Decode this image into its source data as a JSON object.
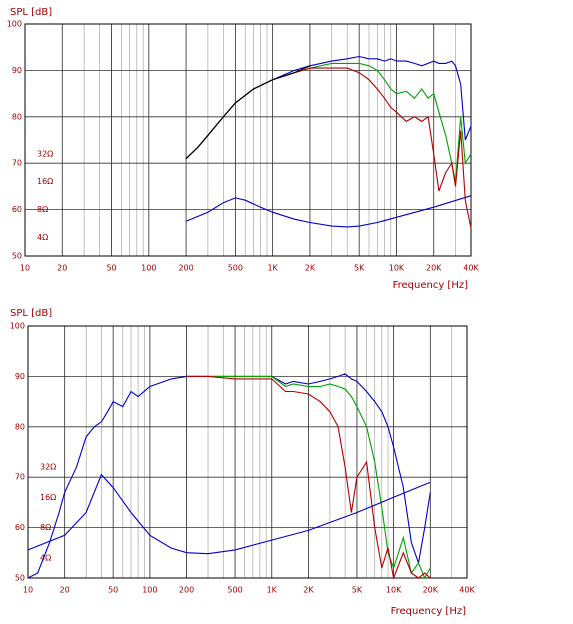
{
  "chart_data": [
    {
      "type": "line",
      "ylabel": "SPL [dB]",
      "xlabel": "Frequency [Hz]",
      "xscale": "log",
      "xlim": [
        10,
        40000
      ],
      "ylim": [
        50,
        100
      ],
      "xticks": [
        10,
        20,
        50,
        100,
        200,
        500,
        {
          "value": 1000,
          "label": "1K"
        },
        {
          "value": 2000,
          "label": "2K"
        },
        {
          "value": 5000,
          "label": "5K"
        },
        {
          "value": 10000,
          "label": "10K"
        },
        {
          "value": 20000,
          "label": "20K"
        },
        {
          "value": 40000,
          "label": "40K"
        }
      ],
      "yticks": [
        50,
        60,
        70,
        80,
        90,
        100
      ],
      "y2scale": "log",
      "y2lim": [
        2.52,
        812
      ],
      "y2ticks": [
        {
          "value": 4,
          "label": "4Ω"
        },
        {
          "value": 8,
          "label": "8Ω"
        },
        {
          "value": 16,
          "label": "16Ω"
        },
        {
          "value": 32,
          "label": "32Ω"
        }
      ],
      "grid": true,
      "minor_grid": true,
      "series": [
        {
          "color": "#0000cc",
          "x": [
            200,
            250,
            300,
            400,
            500,
            700,
            1000,
            1500,
            2000,
            3000,
            4000,
            5000,
            6000,
            7000,
            8000,
            9000,
            10000,
            12000,
            14000,
            16000,
            18000,
            20000,
            22000,
            25000,
            28000,
            30000,
            33000,
            36000,
            40000
          ],
          "values": [
            71,
            73.5,
            76,
            80,
            83,
            86,
            88,
            90,
            91,
            92,
            92.5,
            93,
            92.5,
            92.5,
            92,
            92.5,
            92,
            92,
            91.5,
            91,
            91.5,
            92,
            91.5,
            91.5,
            92,
            91,
            87,
            75,
            78
          ]
        },
        {
          "color": "#00a000",
          "x": [
            200,
            250,
            300,
            400,
            500,
            700,
            1000,
            1500,
            2000,
            3000,
            4000,
            5000,
            6000,
            7000,
            8000,
            9000,
            10000,
            12000,
            14000,
            16000,
            18000,
            20000,
            22000,
            25000,
            28000,
            30000,
            33000,
            36000,
            40000
          ],
          "values": [
            71,
            73.5,
            76,
            80,
            83,
            86,
            88,
            89.5,
            90.5,
            91.5,
            91.5,
            91.5,
            91,
            90,
            88,
            86,
            85,
            85.5,
            84,
            86,
            84,
            85,
            81,
            76,
            70,
            66,
            80,
            70,
            72
          ]
        },
        {
          "color": "#b00000",
          "x": [
            200,
            250,
            300,
            400,
            500,
            700,
            1000,
            1500,
            2000,
            3000,
            4000,
            5000,
            6000,
            7000,
            8000,
            9000,
            10000,
            12000,
            14000,
            16000,
            18000,
            20000,
            22000,
            25000,
            28000,
            30000,
            33000,
            36000,
            40000
          ],
          "values": [
            71,
            73.5,
            76,
            80,
            83,
            86,
            88,
            89.5,
            90.5,
            90.5,
            90.5,
            89.5,
            88,
            86,
            84,
            82,
            81,
            79,
            80,
            79,
            80,
            72,
            64,
            68,
            70,
            65,
            77,
            62,
            56
          ]
        },
        {
          "color": "#000000",
          "x": [
            200,
            250,
            300,
            400,
            500,
            700,
            1000,
            1500,
            2000
          ],
          "values": [
            71,
            73.5,
            76,
            80,
            83,
            86,
            88,
            89.5,
            91
          ]
        },
        {
          "color": "#0000cc",
          "axis": "y2",
          "x": [
            200,
            300,
            400,
            500,
            600,
            800,
            1000,
            1500,
            2000,
            3000,
            4000,
            5000,
            7000,
            10000,
            20000,
            40000
          ],
          "values": [
            6.0,
            7.5,
            9.5,
            10.7,
            10.1,
            8.5,
            7.5,
            6.3,
            5.8,
            5.3,
            5.2,
            5.3,
            5.8,
            6.6,
            8.5,
            11.3
          ]
        }
      ]
    },
    {
      "type": "line",
      "ylabel": "SPL [dB]",
      "xlabel": "Frequency [Hz]",
      "xscale": "log",
      "xlim": [
        10,
        40000
      ],
      "ylim": [
        50,
        100
      ],
      "xticks": [
        10,
        20,
        50,
        100,
        200,
        500,
        {
          "value": 1000,
          "label": "1K"
        },
        {
          "value": 2000,
          "label": "2K"
        },
        {
          "value": 5000,
          "label": "5K"
        },
        {
          "value": 10000,
          "label": "10K"
        },
        {
          "value": 20000,
          "label": "20K"
        },
        {
          "value": 40000,
          "label": "40K"
        }
      ],
      "yticks": [
        50,
        60,
        70,
        80,
        90,
        100
      ],
      "y2scale": "log",
      "y2lim": [
        2.52,
        812
      ],
      "y2ticks": [
        {
          "value": 4,
          "label": "4Ω"
        },
        {
          "value": 8,
          "label": "8Ω"
        },
        {
          "value": 16,
          "label": "16Ω"
        },
        {
          "value": 32,
          "label": "32Ω"
        }
      ],
      "grid": true,
      "minor_grid": true,
      "series": [
        {
          "color": "#0000cc",
          "x": [
            10,
            12,
            15,
            18,
            20,
            25,
            30,
            35,
            40,
            45,
            50,
            60,
            70,
            80,
            100,
            150,
            200,
            300,
            500,
            700,
            1000,
            1300,
            1500,
            2000,
            2500,
            3000,
            3500,
            4000,
            4500,
            5000,
            6000,
            7000,
            8000,
            9000,
            10000,
            12000,
            14000,
            16000,
            18000,
            20000
          ],
          "values": [
            50,
            51,
            57,
            63,
            67,
            72,
            78,
            80,
            81,
            83,
            85,
            84,
            87,
            86,
            88,
            89.5,
            90,
            90,
            90,
            90,
            90,
            88.5,
            89,
            88.5,
            89,
            89.5,
            90,
            90.5,
            89.5,
            89,
            87,
            85,
            83,
            80,
            76,
            68,
            57,
            53,
            60,
            67
          ]
        },
        {
          "color": "#00a000",
          "x": [
            200,
            300,
            500,
            700,
            1000,
            1300,
            1500,
            2000,
            2500,
            3000,
            3500,
            4000,
            4500,
            5000,
            6000,
            7000,
            8000,
            9000,
            10000,
            12000,
            14000,
            16000,
            18000,
            20000
          ],
          "values": [
            90,
            90,
            90,
            90,
            90,
            88,
            88.5,
            88,
            88,
            88.5,
            88,
            87.5,
            86,
            84,
            80,
            73,
            64,
            55,
            52,
            58,
            51,
            53,
            50,
            52
          ]
        },
        {
          "color": "#b00000",
          "x": [
            200,
            300,
            500,
            700,
            1000,
            1300,
            1500,
            2000,
            2500,
            3000,
            3500,
            4000,
            4500,
            5000,
            6000,
            7000,
            8000,
            9000,
            10000,
            12000,
            14000,
            16000,
            18000,
            20000
          ],
          "values": [
            90,
            90,
            89.5,
            89.5,
            89.5,
            87,
            87,
            86.5,
            85,
            83,
            80,
            72,
            63,
            70,
            73,
            60,
            52,
            56,
            50,
            55,
            51,
            50,
            51,
            50
          ]
        },
        {
          "color": "#0000cc",
          "axis": "y2",
          "x": [
            10,
            20,
            30,
            40,
            50,
            70,
            100,
            150,
            200,
            300,
            500,
            1000,
            2000,
            5000,
            10000,
            20000
          ],
          "values": [
            4.8,
            6.7,
            11.3,
            26.9,
            20,
            11.3,
            6.7,
            5.0,
            4.5,
            4.4,
            4.8,
            6.0,
            7.5,
            11.3,
            16,
            22.6
          ]
        }
      ]
    }
  ]
}
